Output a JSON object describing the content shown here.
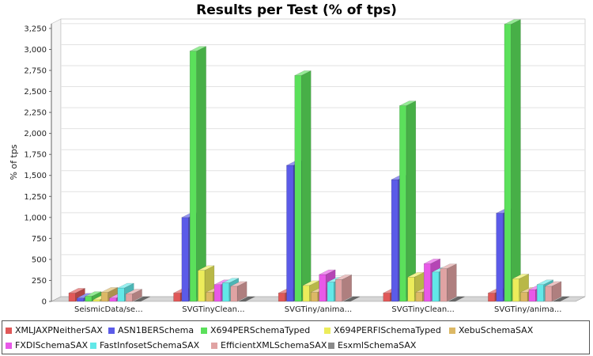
{
  "chart_data": {
    "type": "bar",
    "title": "Results per Test (% of tps)",
    "ylabel": "% of tps",
    "xlabel": "",
    "ylim": [
      0,
      3400
    ],
    "yticks": [
      "0",
      "250",
      "500",
      "750",
      "1,000",
      "1,250",
      "1,500",
      "1,750",
      "2,000",
      "2,250",
      "2,500",
      "2,750",
      "3,000",
      "3,250"
    ],
    "ytick_values": [
      0,
      250,
      500,
      750,
      1000,
      1250,
      1500,
      1750,
      2000,
      2250,
      2500,
      2750,
      3000,
      3250
    ],
    "categories": [
      "SeismicData/se...",
      "SVGTinyClean...",
      "SVGTiny/anima...",
      "SVGTinyClean...",
      "SVGTiny/anima..."
    ],
    "legend_position": "bottom",
    "series": [
      {
        "name": "XMLJAXPNeitherSAX",
        "color": "#e05858",
        "values": [
          100,
          100,
          100,
          100,
          100
        ]
      },
      {
        "name": "ASN1BERSchema",
        "color": "#5b5be8",
        "values": [
          40,
          1000,
          1620,
          1450,
          1050
        ]
      },
      {
        "name": "X694PERSchemaTyped",
        "color": "#5be05b",
        "values": [
          60,
          2980,
          2690,
          2330,
          3300
        ]
      },
      {
        "name": "X694PERFISchemaTyped",
        "color": "#ecec5b",
        "values": [
          20,
          370,
          190,
          290,
          270
        ]
      },
      {
        "name": "XebuSchemaSAX",
        "color": "#dcb865",
        "values": [
          110,
          110,
          110,
          110,
          110
        ]
      },
      {
        "name": "FXDISchemaSAX",
        "color": "#e859e8",
        "values": [
          40,
          200,
          320,
          450,
          140
        ]
      },
      {
        "name": "FastInfosetSchemaSAX",
        "color": "#62e8e8",
        "values": [
          160,
          220,
          230,
          350,
          200
        ]
      },
      {
        "name": "EfficientXMLSchemaSAX",
        "color": "#e0a3a3",
        "values": [
          90,
          180,
          260,
          390,
          180
        ]
      },
      {
        "name": "EsxmlSchemaSAX",
        "color": "#8a8a8a",
        "values": [
          0,
          0,
          0,
          0,
          0
        ]
      }
    ]
  }
}
